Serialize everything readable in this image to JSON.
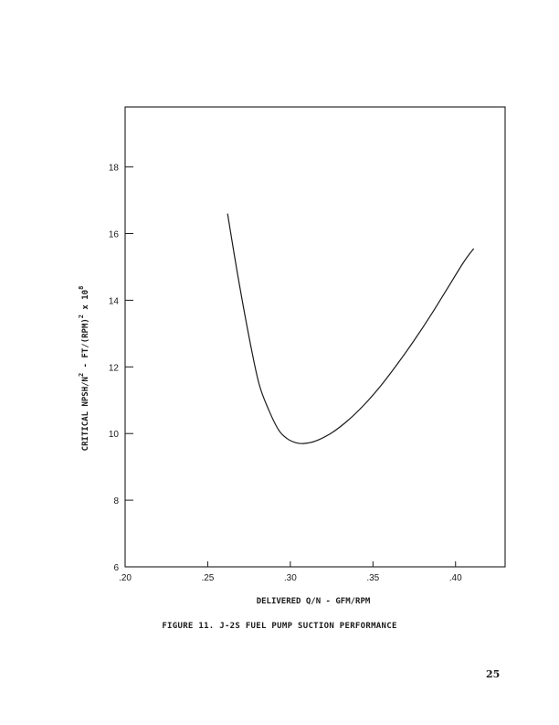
{
  "page": {
    "caption": "FIGURE 11.  J-2S FUEL PUMP SUCTION PERFORMANCE",
    "page_number": "25"
  },
  "chart_data": {
    "type": "line",
    "title": "",
    "xlabel": "DELIVERED Q/N - GFM/RPM",
    "ylabel": {
      "prefix": "CRITICAL  NPSH/N",
      "sup1": "2",
      "middle": "  -  FT/(RPM)",
      "sup2": "2",
      "suffix": " x 10",
      "sup3": "8"
    },
    "xlim": [
      0.2,
      0.43
    ],
    "ylim": [
      6,
      19.8
    ],
    "x_ticks": [
      0.2,
      0.25,
      0.3,
      0.35,
      0.4
    ],
    "x_tick_labels": [
      ".20",
      ".25",
      ".30",
      ".35",
      ".40"
    ],
    "y_ticks": [
      6,
      8,
      10,
      12,
      14,
      16,
      18
    ],
    "y_tick_labels": [
      "6",
      "8",
      "10",
      "12",
      "14",
      "16",
      "18"
    ],
    "grid": false,
    "series": [
      {
        "x": [
          0.262,
          0.268,
          0.275,
          0.281,
          0.287,
          0.293,
          0.298,
          0.303,
          0.308,
          0.315,
          0.325,
          0.335,
          0.345,
          0.355,
          0.365,
          0.375,
          0.385,
          0.395,
          0.405,
          0.411
        ],
        "y": [
          16.6,
          14.8,
          12.9,
          11.5,
          10.7,
          10.1,
          9.85,
          9.73,
          9.7,
          9.77,
          10.02,
          10.4,
          10.88,
          11.45,
          12.1,
          12.8,
          13.55,
          14.35,
          15.15,
          15.55
        ]
      }
    ]
  }
}
